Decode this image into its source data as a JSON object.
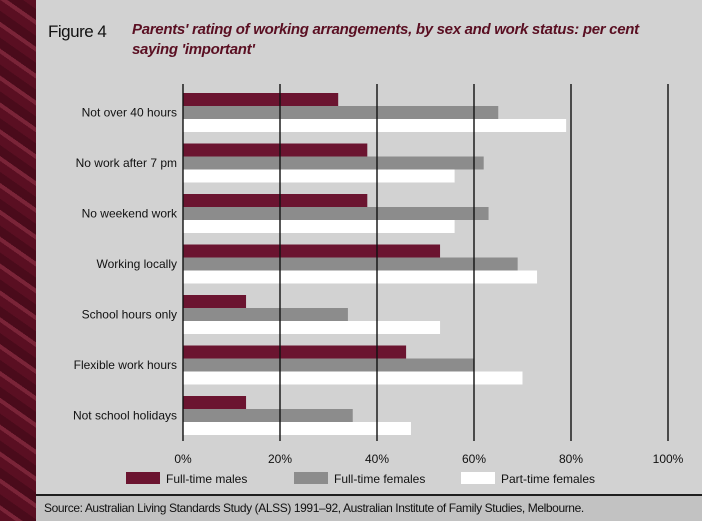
{
  "figure_label": "Figure 4",
  "title": "Parents' rating of working arrangements, by sex and work status: per cent saying 'important'",
  "source": "Source: Australian Living Standards Study (ALSS) 1991–92, Australian Institute of Family Studies, Melbourne.",
  "colors": {
    "full_time_males": "#6b1430",
    "full_time_females": "#8c8c8c",
    "part_time_females": "#ffffff",
    "background": "#d2d2d2",
    "gridline": "#111111"
  },
  "chart_data": {
    "type": "bar",
    "orientation": "horizontal",
    "categories": [
      "Not over 40 hours",
      "No work after 7 pm",
      "No weekend work",
      "Working locally",
      "School hours only",
      "Flexible work hours",
      "Not school holidays"
    ],
    "series": [
      {
        "name": "Full-time males",
        "values": [
          32,
          38,
          38,
          53,
          13,
          46,
          13
        ]
      },
      {
        "name": "Full-time females",
        "values": [
          65,
          62,
          63,
          69,
          34,
          60,
          35
        ]
      },
      {
        "name": "Part-time females",
        "values": [
          79,
          56,
          56,
          73,
          53,
          70,
          47
        ]
      }
    ],
    "xlim": [
      0,
      100
    ],
    "xticks": [
      "0%",
      "20%",
      "40%",
      "60%",
      "80%",
      "100%"
    ],
    "grid": true,
    "legend_position": "bottom"
  }
}
